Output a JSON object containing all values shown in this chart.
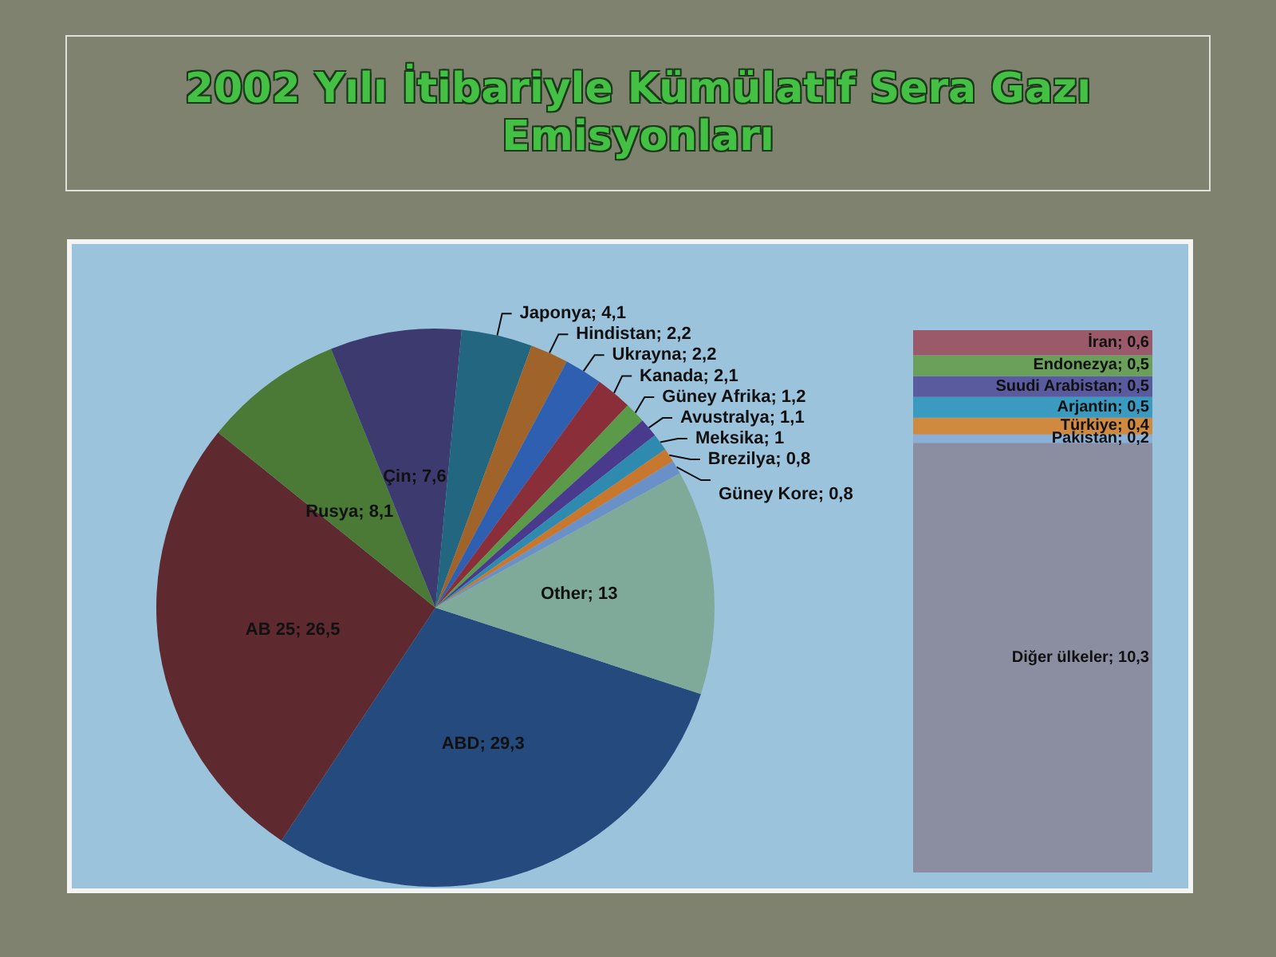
{
  "chart_data": [
    {
      "type": "pie",
      "title": "2002 Yılı İtibariyle Kümülatif Sera Gazı Emisyonları",
      "categories": [
        "ABD",
        "AB 25",
        "Rusya",
        "Çin",
        "Japonya",
        "Hindistan",
        "Ukrayna",
        "Kanada",
        "Güney Afrika",
        "Avustralya",
        "Meksika",
        "Brezilya",
        "Güney Kore",
        "Other"
      ],
      "values": [
        29.3,
        26.5,
        8.1,
        7.6,
        4.1,
        2.2,
        2.2,
        2.1,
        1.2,
        1.1,
        1,
        0.8,
        0.8,
        13
      ],
      "value_labels": [
        "29,3",
        "26,5",
        "8,1",
        "7,6",
        "4,1",
        "2,2",
        "2,2",
        "2,1",
        "1,2",
        "1,1",
        "1",
        "0,8",
        "0,8",
        "13"
      ],
      "colors": [
        "#254a7e",
        "#5e2a30",
        "#4a7a36",
        "#3c3a6e",
        "#236680",
        "#a0642a",
        "#2e5fb0",
        "#8a2f3a",
        "#5a9a48",
        "#4a3a8e",
        "#2f8ab0",
        "#c8782e",
        "#6a90c8",
        "#7faa9a"
      ]
    },
    {
      "type": "bar",
      "stacked": true,
      "categories": [
        null
      ],
      "series": [
        {
          "name": "Diğer ülkeler;",
          "color": "#8a8ea0",
          "values": [
            10.3
          ],
          "value_labels": [
            "10,3"
          ]
        },
        {
          "name": "Pakistan;",
          "color": "#8ab0d8",
          "values": [
            0.2
          ],
          "value_labels": [
            "0,2"
          ]
        },
        {
          "name": "Türkiye;",
          "color": "#d08a40",
          "values": [
            0.4
          ],
          "value_labels": [
            "0,4"
          ]
        },
        {
          "name": "Arjantin;",
          "color": "#3a9ac0",
          "values": [
            0.5
          ],
          "value_labels": [
            "0,5"
          ]
        },
        {
          "name": "Suudi Arabistan;",
          "color": "#5a5a9f",
          "values": [
            0.5
          ],
          "value_labels": [
            "0,5"
          ]
        },
        {
          "name": "Endonezya;",
          "color": "#6aa05a",
          "values": [
            0.5
          ],
          "value_labels": [
            "0,5"
          ]
        },
        {
          "name": "İran;",
          "color": "#9b5a6a",
          "values": [
            0.6
          ],
          "value_labels": [
            "0,6"
          ]
        }
      ]
    }
  ]
}
